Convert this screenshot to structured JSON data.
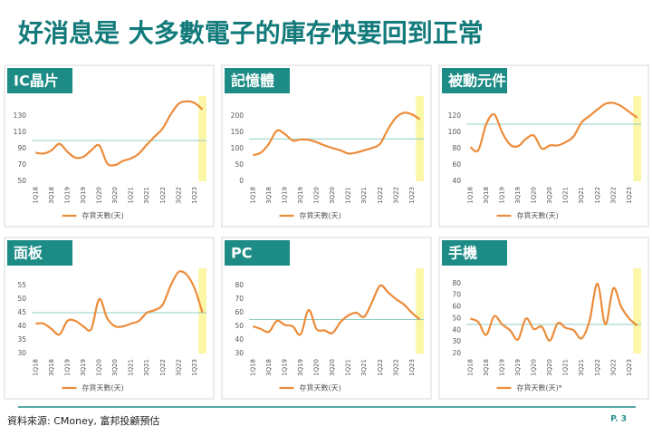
{
  "header": {
    "title": "好消息是  大多數電子的庫存快要回到正常"
  },
  "footer": {
    "source": "資料來源: CMoney, 富邦投顧預估",
    "page": "P. 3"
  },
  "chart_data": [
    {
      "type": "line",
      "title": "IC晶片",
      "categories": [
        "1Q18",
        null,
        "3Q18",
        null,
        "1Q19",
        null,
        "3Q19",
        null,
        "1Q20",
        null,
        "3Q20",
        null,
        "1Q21",
        null,
        "3Q21",
        null,
        "1Q22",
        null,
        "3Q22",
        null,
        "1Q23",
        null
      ],
      "series": [
        {
          "name": "存貨天數(天)",
          "color": "#ec8c3a",
          "values": [
            85,
            84,
            88,
            96,
            86,
            79,
            80,
            88,
            94,
            72,
            70,
            75,
            78,
            84,
            95,
            105,
            115,
            132,
            145,
            148,
            146,
            138
          ]
        }
      ],
      "ylim": [
        50,
        150
      ],
      "yticks": [
        50,
        70,
        90,
        110,
        130
      ],
      "reference_line": 100
    },
    {
      "type": "line",
      "title": "記憶體",
      "categories": [
        "1Q18",
        null,
        "3Q18",
        null,
        "1Q19",
        null,
        "3Q19",
        null,
        "1Q20",
        null,
        "3Q20",
        null,
        "1Q21",
        null,
        "3Q21",
        null,
        "1Q22",
        null,
        "3Q22",
        null,
        "1Q23",
        null
      ],
      "series": [
        {
          "name": "存貨天數(天)",
          "color": "#ec8c3a",
          "values": [
            80,
            88,
            115,
            155,
            145,
            125,
            128,
            127,
            120,
            110,
            102,
            95,
            85,
            88,
            95,
            102,
            115,
            160,
            195,
            210,
            205,
            190
          ]
        }
      ],
      "ylim": [
        0,
        250
      ],
      "yticks": [
        0,
        50,
        100,
        150,
        200
      ],
      "reference_line": 130
    },
    {
      "type": "line",
      "title": "被動元件",
      "categories": [
        "1Q18",
        null,
        "3Q18",
        null,
        "1Q19",
        null,
        "3Q19",
        null,
        "1Q20",
        null,
        "3Q20",
        null,
        "1Q21",
        null,
        "3Q21",
        null,
        "1Q22",
        null,
        "3Q22",
        null,
        "1Q23",
        null
      ],
      "series": [
        {
          "name": "存貨天數(天)",
          "color": "#ec8c3a",
          "values": [
            82,
            78,
            110,
            122,
            100,
            85,
            83,
            92,
            96,
            80,
            84,
            84,
            88,
            95,
            112,
            120,
            128,
            135,
            136,
            132,
            125,
            118
          ]
        }
      ],
      "ylim": [
        40,
        140
      ],
      "yticks": [
        40,
        60,
        80,
        100,
        120
      ],
      "reference_line": 110
    },
    {
      "type": "line",
      "title": "面板",
      "categories": [
        "1Q18",
        null,
        "3Q18",
        null,
        "1Q19",
        null,
        "3Q19",
        null,
        "1Q20",
        null,
        "3Q20",
        null,
        "1Q21",
        null,
        "3Q21",
        null,
        "1Q22",
        null,
        "3Q22",
        null,
        "1Q23",
        null
      ],
      "series": [
        {
          "name": "存貨天數(天)",
          "color": "#ec8c3a",
          "values": [
            41,
            41,
            39,
            37,
            42,
            42,
            40,
            39,
            50,
            43,
            40,
            40,
            41,
            42,
            45,
            46,
            48,
            55,
            60,
            59,
            54,
            45
          ]
        }
      ],
      "ylim": [
        30,
        60
      ],
      "yticks": [
        30,
        35,
        40,
        45,
        50,
        55
      ],
      "reference_line": 45
    },
    {
      "type": "line",
      "title": "PC",
      "categories": [
        "1Q18",
        null,
        "3Q18",
        null,
        "1Q19",
        null,
        "3Q19",
        null,
        "1Q20",
        null,
        "3Q20",
        null,
        "1Q21",
        null,
        "3Q21",
        null,
        "1Q22",
        null,
        "3Q22",
        null,
        "1Q23",
        null
      ],
      "series": [
        {
          "name": "存貨天數(天)",
          "color": "#ec8c3a",
          "values": [
            50,
            48,
            46,
            54,
            51,
            50,
            44,
            62,
            48,
            47,
            45,
            53,
            58,
            60,
            57,
            68,
            80,
            75,
            70,
            66,
            60,
            55
          ]
        }
      ],
      "ylim": [
        30,
        90
      ],
      "yticks": [
        30,
        40,
        50,
        60,
        70,
        80
      ],
      "reference_line": 55
    },
    {
      "type": "line",
      "title": "手機",
      "categories": [
        "1Q18",
        null,
        "3Q18",
        null,
        "1Q19",
        null,
        "3Q19",
        null,
        "1Q20",
        null,
        "3Q20",
        null,
        "1Q21",
        null,
        "3Q21",
        null,
        "1Q22",
        null,
        "3Q22",
        null,
        "1Q23",
        null
      ],
      "series": [
        {
          "name": "存貨天數(天)*",
          "color": "#ec8c3a",
          "values": [
            50,
            47,
            36,
            52,
            45,
            40,
            32,
            50,
            41,
            43,
            31,
            46,
            42,
            40,
            33,
            48,
            80,
            45,
            76,
            60,
            50,
            44
          ]
        }
      ],
      "ylim": [
        20,
        90
      ],
      "yticks": [
        20,
        30,
        40,
        50,
        60,
        70,
        80
      ],
      "reference_line": 45
    }
  ]
}
